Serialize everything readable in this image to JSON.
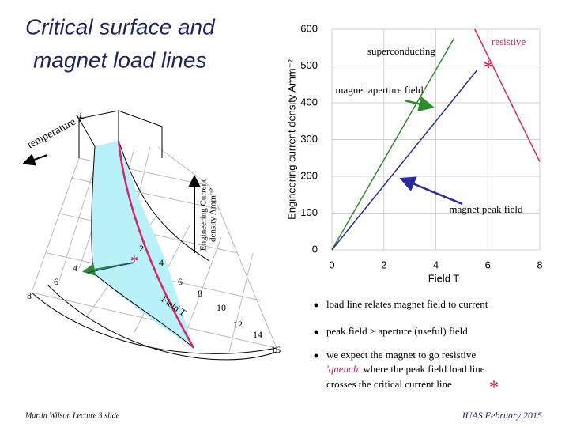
{
  "title": [
    "Critical surface and",
    "magnet load lines"
  ],
  "marker": "*",
  "diagram": {
    "temperature_label": "temperature K",
    "current_label": [
      "Engineering Current",
      "density Amm⁻²"
    ],
    "field_label": "Field T",
    "temperature_ticks": [
      "8",
      "6",
      "4",
      "2"
    ],
    "field_ticks": [
      "4",
      "6",
      "8",
      "10",
      "12",
      "14",
      "16"
    ]
  },
  "chart_data": {
    "type": "line",
    "xlabel": "Field T",
    "ylabel": "Engineering current density Amm⁻²",
    "xlim": [
      0,
      8
    ],
    "ylim": [
      0,
      600
    ],
    "xticks": [
      0,
      2,
      4,
      6,
      8
    ],
    "yticks": [
      0,
      100,
      200,
      300,
      400,
      500,
      600
    ],
    "grid": true,
    "series": [
      {
        "color": "#2e8b2e",
        "x": [
          0,
          4.7
        ],
        "values": [
          0,
          575
        ]
      },
      {
        "color": "#2a2aa0",
        "x": [
          0,
          5.6
        ],
        "values": [
          0,
          490
        ]
      },
      {
        "color": "#e0206a",
        "x": [
          5.5,
          8
        ],
        "values": [
          600,
          240
        ]
      }
    ],
    "annotations": [
      "superconducting",
      "resistive",
      "magnet aperture field",
      "magnet peak field"
    ]
  },
  "bullets": [
    "load line relates magnet field to current",
    "peak field > aperture (useful) field",
    [
      "we expect the magnet to go resistive",
      "'quench'",
      "where the peak field load line",
      "crosses the critical current line"
    ]
  ],
  "footer": {
    "left": "Martin Wilson Lecture 3 slide",
    "right": "JUAS February 2015"
  }
}
